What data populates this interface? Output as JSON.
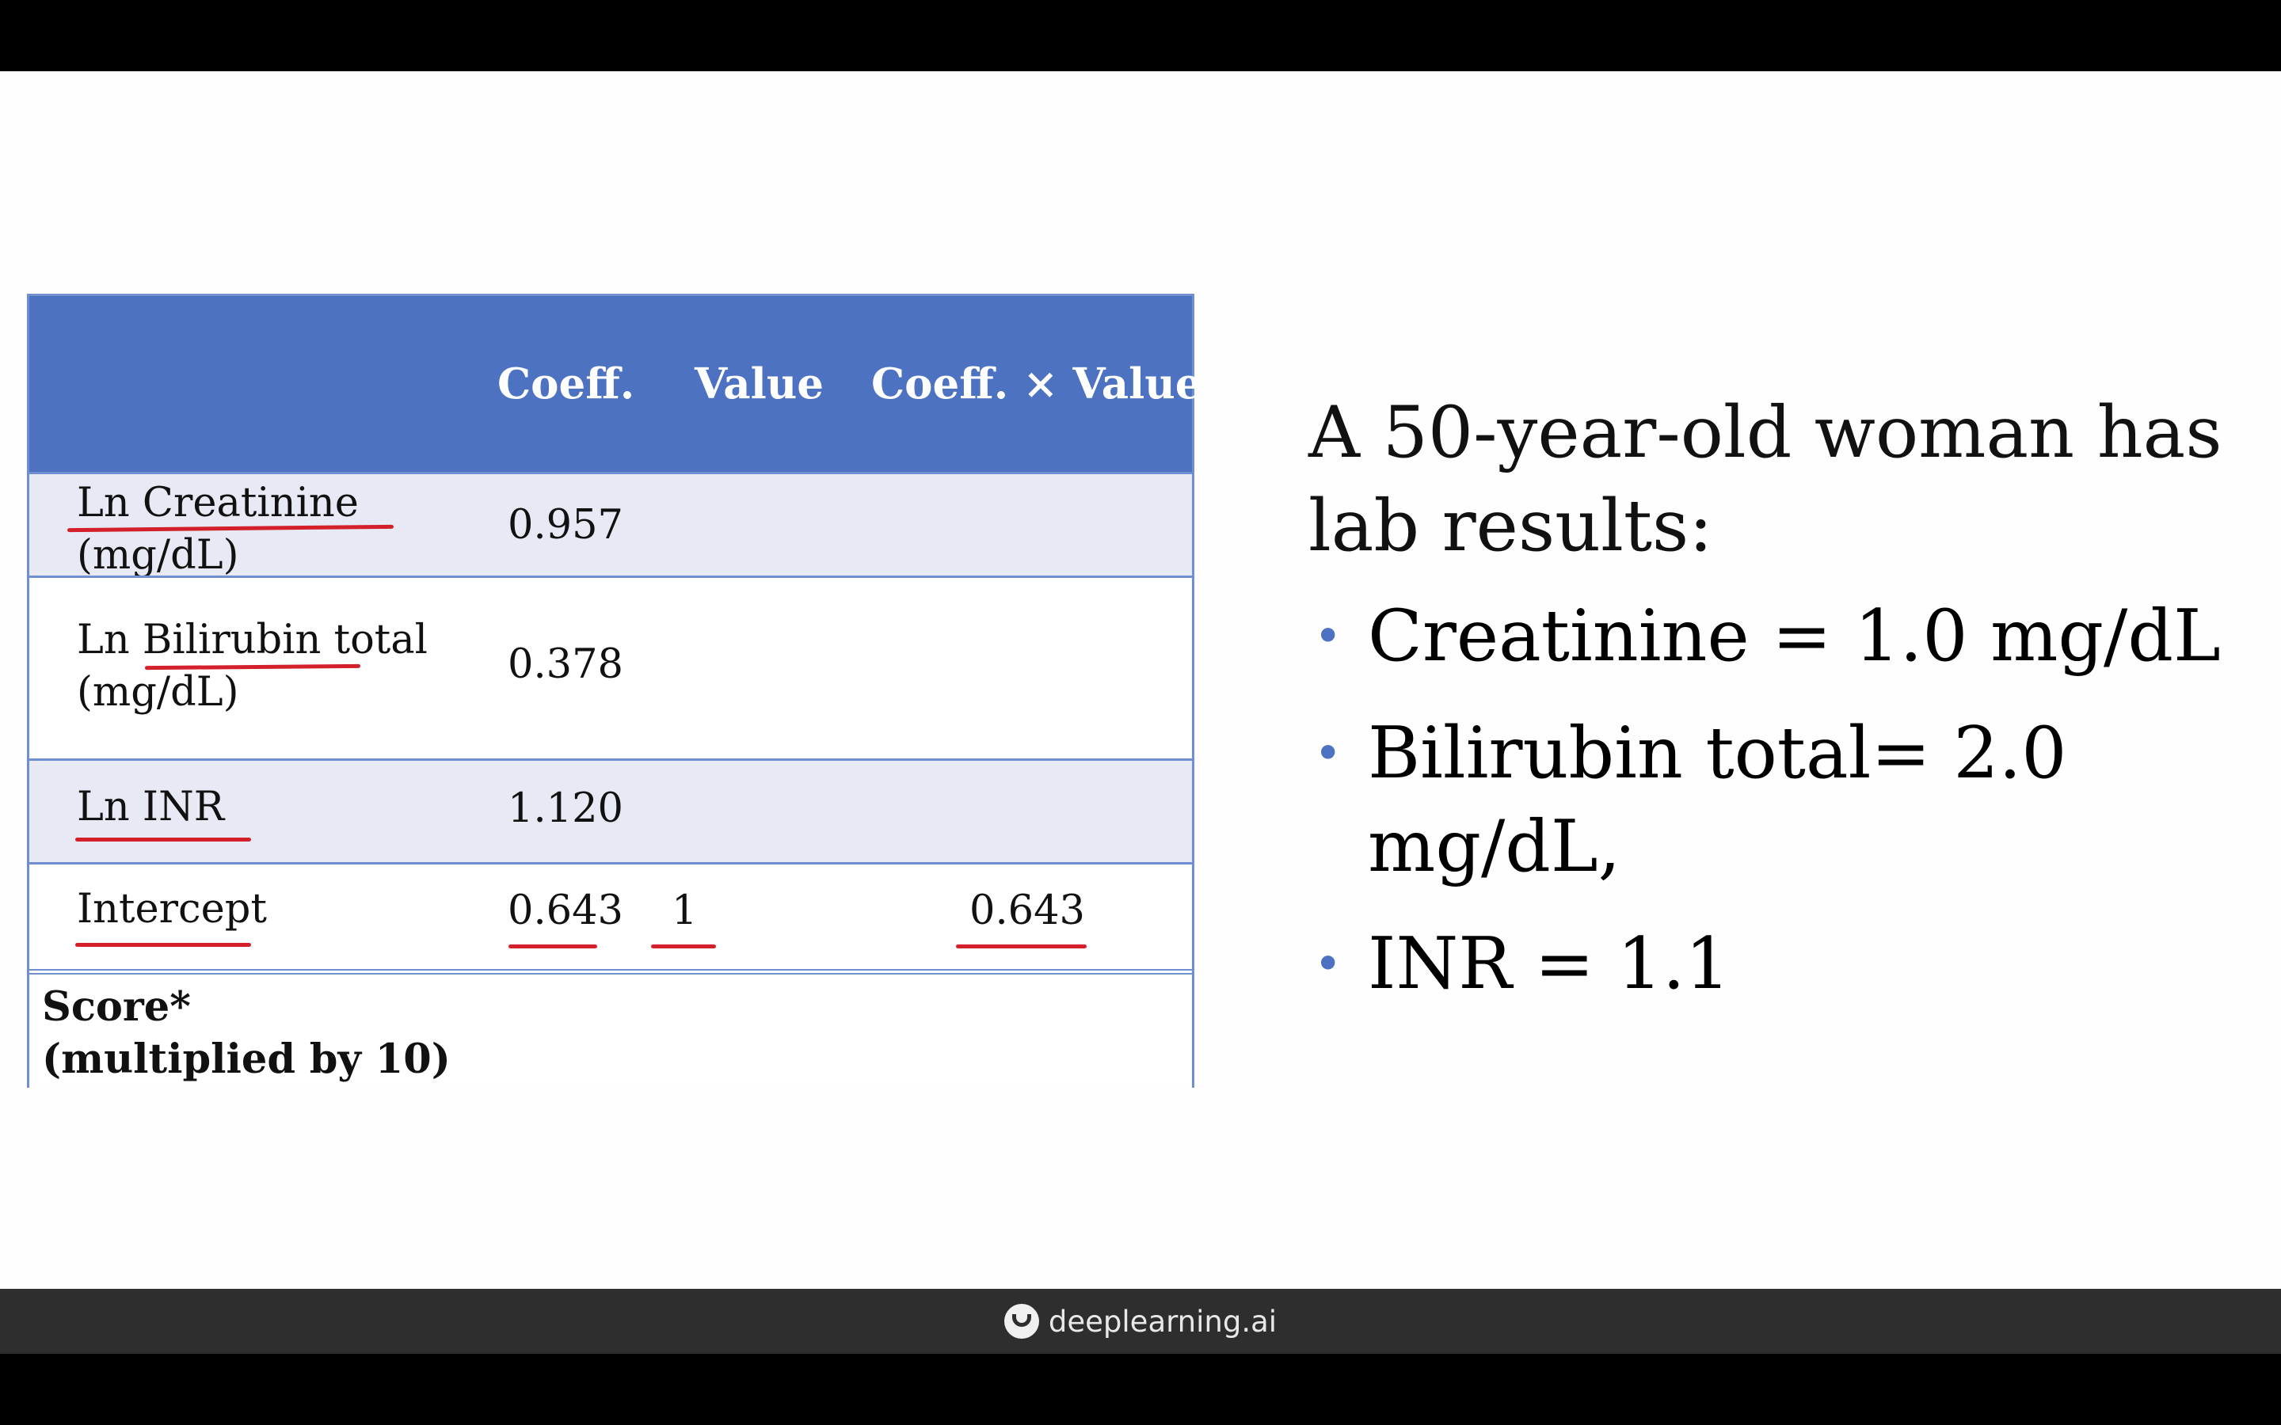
{
  "table": {
    "headers": {
      "label": "",
      "coeff": "Coeff.",
      "value": "Value",
      "coeff_x_value": "Coeff. × Value"
    },
    "rows": [
      {
        "label_line1": "Ln Creatinine",
        "label_line2": "(mg/dL)",
        "coeff": "0.957",
        "value": "",
        "coeff_x_value": ""
      },
      {
        "label_line1": "Ln Bilirubin total",
        "label_line2": "(mg/dL)",
        "coeff": "0.378",
        "value": "",
        "coeff_x_value": ""
      },
      {
        "label_line1": "Ln INR",
        "coeff": "1.120",
        "value": "",
        "coeff_x_value": ""
      },
      {
        "label_line1": "Intercept",
        "coeff": "0.643",
        "value": "1",
        "coeff_x_value": "0.643"
      }
    ],
    "score": {
      "line1": "Score*",
      "line2": "(multiplied by 10)"
    }
  },
  "question": {
    "line1": "A 50-year-old woman has",
    "line2": "lab results:",
    "bullets": [
      {
        "line1": "Creatinine = 1.0 mg/dL"
      },
      {
        "line1": "Bilirubin total= 2.0",
        "line2": "mg/dL,"
      },
      {
        "line1": "INR = 1.1"
      }
    ]
  },
  "footer": {
    "brand": "deeplearning.ai",
    "logo_icon": "deeplearning-logo-icon"
  },
  "colors": {
    "header": "#4d72c2",
    "band": "#e7eaf4",
    "border": "#6f8fd1",
    "annotation": "#d4202a",
    "bullet": "#4d72c2"
  }
}
